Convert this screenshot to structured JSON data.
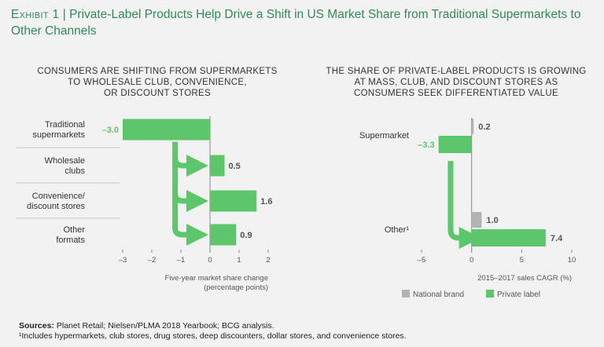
{
  "header": {
    "exhibit_label": "Exhibit 1",
    "separator": " | ",
    "title": "Private-Label Products Help Drive a Shift in US Market Share from Traditional Supermarkets to Other Channels"
  },
  "colors": {
    "title_green": "#2e8b57",
    "bar_green": "#5cc66a",
    "national_gray": "#b3b3b3",
    "background": "#f2f2f2"
  },
  "chart_data": [
    {
      "type": "bar",
      "orientation": "horizontal",
      "subtitle_lines": [
        "CONSUMERS ARE SHIFTING FROM SUPERMARKETS",
        "TO WHOLESALE CLUB, CONVENIENCE,",
        "OR DISCOUNT STORES"
      ],
      "categories": [
        [
          "Traditional",
          "supermarkets"
        ],
        [
          "Wholesale",
          "clubs"
        ],
        [
          "Convenience/",
          "discount stores"
        ],
        [
          "Other",
          "formats"
        ]
      ],
      "values": [
        -3.0,
        0.5,
        1.6,
        0.9
      ],
      "value_labels": [
        "–3.0",
        "0.5",
        "1.6",
        "0.9"
      ],
      "xlim": [
        -3,
        2
      ],
      "ticks": [
        -3,
        -2,
        -1,
        0,
        1,
        2
      ],
      "tick_labels": [
        "–3",
        "–2",
        "–1",
        "0",
        "1",
        "2"
      ],
      "xlabel_lines": [
        "Five-year market share change",
        "(percentage points)"
      ]
    },
    {
      "type": "bar",
      "orientation": "horizontal",
      "subtitle_lines": [
        "THE SHARE OF PRIVATE-LABEL PRODUCTS IS GROWING",
        "AT MASS, CLUB, AND DISCOUNT STORES AS",
        "CONSUMERS SEEK DIFFERENTIATED VALUE"
      ],
      "categories": [
        "Supermarket",
        "Other¹"
      ],
      "series": [
        {
          "name": "National brand",
          "values": [
            0.2,
            1.0
          ],
          "value_labels": [
            "0.2",
            "1.0"
          ]
        },
        {
          "name": "Private label",
          "values": [
            -3.3,
            7.4
          ],
          "value_labels": [
            "–3.3",
            "7.4"
          ]
        }
      ],
      "xlim": [
        -5,
        10
      ],
      "ticks": [
        -5,
        0,
        5,
        10
      ],
      "tick_labels": [
        "–5",
        "0",
        "5",
        "10"
      ],
      "xlabel": "2015–2017 sales CAGR (%)",
      "legend": "bottom"
    }
  ],
  "footer": {
    "sources_label": "Sources:",
    "sources_text": " Planet Retail; Nielsen/PLMA 2018 Yearbook; BCG analysis.",
    "footnote": "¹Includes hypermarkets, club stores, drug stores, deep discounters, dollar stores, and convenience stores."
  }
}
